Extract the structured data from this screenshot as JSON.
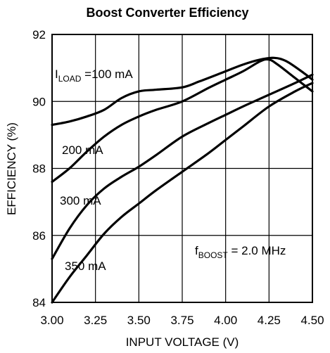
{
  "chart_data": {
    "type": "line",
    "title": "Boost Converter Efficiency",
    "xlabel": "INPUT VOLTAGE (V)",
    "ylabel": "EFFICIENCY (%)",
    "xlim": [
      3.0,
      4.5
    ],
    "ylim": [
      84,
      92
    ],
    "xticks": [
      "3.00",
      "3.25",
      "3.50",
      "3.75",
      "4.00",
      "4.25",
      "4.50"
    ],
    "yticks": [
      "84",
      "86",
      "88",
      "90",
      "92"
    ],
    "grid": true,
    "series": [
      {
        "name": "100 mA",
        "points": [
          [
            3.0,
            89.3
          ],
          [
            3.1,
            89.4
          ],
          [
            3.2,
            89.55
          ],
          [
            3.3,
            89.75
          ],
          [
            3.4,
            90.1
          ],
          [
            3.5,
            90.3
          ],
          [
            3.6,
            90.35
          ],
          [
            3.75,
            90.42
          ],
          [
            3.85,
            90.6
          ],
          [
            4.0,
            90.9
          ],
          [
            4.1,
            91.1
          ],
          [
            4.2,
            91.25
          ],
          [
            4.28,
            91.3
          ],
          [
            4.35,
            91.2
          ],
          [
            4.45,
            90.85
          ],
          [
            4.5,
            90.65
          ]
        ]
      },
      {
        "name": "200 mA",
        "points": [
          [
            3.0,
            87.6
          ],
          [
            3.1,
            88.0
          ],
          [
            3.2,
            88.5
          ],
          [
            3.3,
            88.95
          ],
          [
            3.4,
            89.3
          ],
          [
            3.5,
            89.55
          ],
          [
            3.6,
            89.75
          ],
          [
            3.75,
            90.0
          ],
          [
            3.9,
            90.4
          ],
          [
            4.0,
            90.65
          ],
          [
            4.1,
            90.9
          ],
          [
            4.2,
            91.2
          ],
          [
            4.25,
            91.25
          ],
          [
            4.3,
            91.1
          ],
          [
            4.4,
            90.7
          ],
          [
            4.5,
            90.3
          ]
        ]
      },
      {
        "name": "300 mA",
        "points": [
          [
            3.0,
            85.3
          ],
          [
            3.1,
            86.2
          ],
          [
            3.2,
            86.9
          ],
          [
            3.3,
            87.4
          ],
          [
            3.4,
            87.75
          ],
          [
            3.5,
            88.05
          ],
          [
            3.6,
            88.4
          ],
          [
            3.75,
            88.95
          ],
          [
            3.9,
            89.35
          ],
          [
            4.0,
            89.6
          ],
          [
            4.1,
            89.85
          ],
          [
            4.25,
            90.2
          ],
          [
            4.4,
            90.55
          ],
          [
            4.5,
            90.8
          ]
        ]
      },
      {
        "name": "350 mA",
        "points": [
          [
            3.0,
            84.0
          ],
          [
            3.1,
            84.75
          ],
          [
            3.2,
            85.4
          ],
          [
            3.3,
            86.05
          ],
          [
            3.4,
            86.55
          ],
          [
            3.5,
            86.95
          ],
          [
            3.6,
            87.35
          ],
          [
            3.75,
            87.9
          ],
          [
            3.9,
            88.45
          ],
          [
            4.0,
            88.85
          ],
          [
            4.1,
            89.25
          ],
          [
            4.25,
            89.85
          ],
          [
            4.4,
            90.3
          ],
          [
            4.5,
            90.55
          ]
        ]
      }
    ],
    "annotations": {
      "iload_prefix": "I",
      "iload_sub": "LOAD",
      "iload_value": " =100 mA",
      "label_200": "200 mA",
      "label_300": "300 mA",
      "label_350": "350 mA",
      "fboost_prefix": "f",
      "fboost_sub": "BOOST",
      "fboost_value": " = 2.0 MHz"
    }
  }
}
